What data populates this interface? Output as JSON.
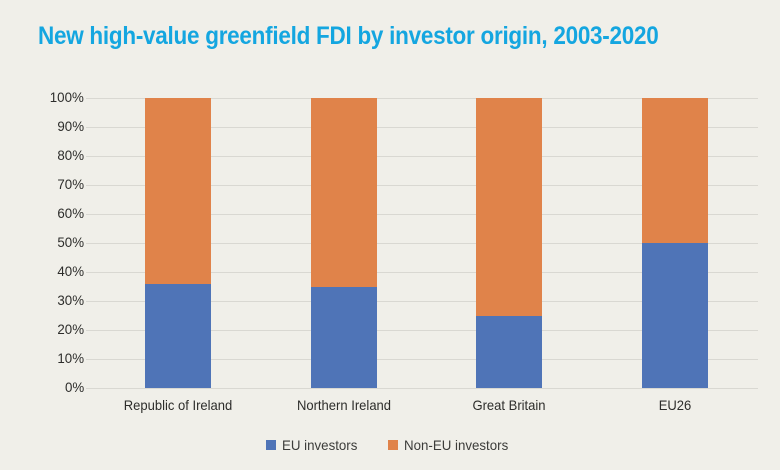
{
  "colors": {
    "background": "#f0efe9",
    "title": "#14a6e0",
    "gridline": "#d9d8d2",
    "axis_text": "#2d2d2b",
    "legend_text": "#3c3c3a",
    "eu_blue": "#4f74b7",
    "non_eu_orange": "#e0834a"
  },
  "chart_data": {
    "type": "bar",
    "stacked": true,
    "title": "New high-value greenfield FDI by investor origin, 2003-2020",
    "categories": [
      "Republic of Ireland",
      "Northern Ireland",
      "Great Britain",
      "EU26"
    ],
    "series": [
      {
        "name": "EU investors",
        "color_key": "eu_blue",
        "values": [
          36,
          35,
          25,
          50
        ]
      },
      {
        "name": "Non-EU investors",
        "color_key": "non_eu_orange",
        "values": [
          64,
          65,
          75,
          50
        ]
      }
    ],
    "xlabel": "",
    "ylabel": "",
    "ylim": [
      0,
      100
    ],
    "y_ticks": [
      "0%",
      "10%",
      "20%",
      "30%",
      "40%",
      "50%",
      "60%",
      "70%",
      "80%",
      "90%",
      "100%"
    ],
    "grid": "horizontal",
    "legend_position": "bottom"
  }
}
